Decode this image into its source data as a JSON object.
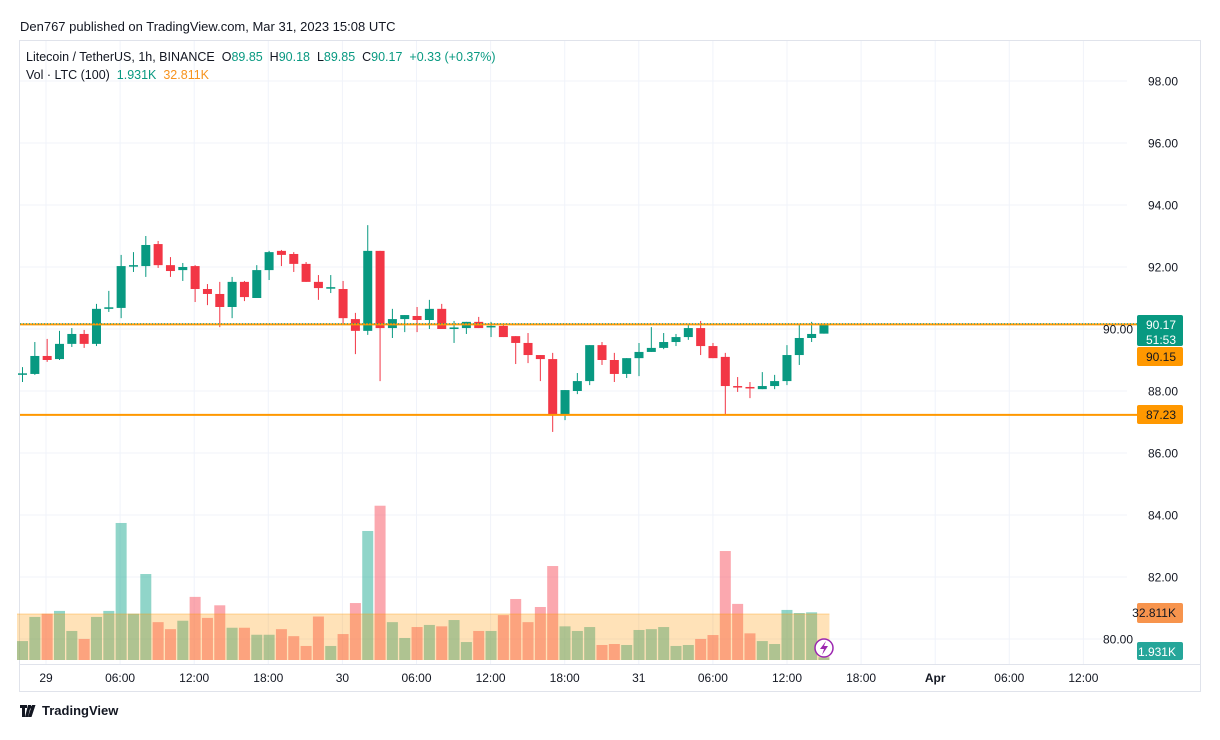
{
  "header": {
    "published": "Den767 published on TradingView.com, Mar 31, 2023 15:08 UTC",
    "symbol": "Litecoin / TetherUS, 1h, BINANCE",
    "o_label": "O",
    "o_value": "89.85",
    "h_label": "H",
    "h_value": "90.18",
    "l_label": "L",
    "l_value": "89.85",
    "c_label": "C",
    "c_value": "90.17",
    "change": "+0.33 (+0.37%)",
    "vol_label": "Vol · LTC (100)",
    "vol_value": "1.931K",
    "vol_ma_value": "32.811K"
  },
  "footer": {
    "brand": "TradingView",
    "logo_icon": "tradingview-logo-icon"
  },
  "colors": {
    "up": "#089981",
    "down": "#f23645",
    "level": "#ff9800",
    "vol_ma": "#ff9800",
    "event": "#9c27b0"
  },
  "badges": {
    "last_price": "90.17",
    "countdown": "51:53",
    "level_high": "90.15",
    "level_low": "87.23",
    "vol_ma": "32.811K",
    "vol_last": "1.931K"
  },
  "chart_data": {
    "type": "candlestick",
    "title": "Litecoin / TetherUS, 1h, BINANCE",
    "y_ticks": [
      "98.00",
      "96.00",
      "94.00",
      "92.00",
      "90.00",
      "88.00",
      "86.00",
      "84.00",
      "82.00",
      "80.00"
    ],
    "ylim": [
      79.3,
      98.9
    ],
    "x_ticks": [
      {
        "label": "29",
        "bold": false
      },
      {
        "label": "06:00",
        "bold": false
      },
      {
        "label": "12:00",
        "bold": false
      },
      {
        "label": "18:00",
        "bold": false
      },
      {
        "label": "30",
        "bold": false
      },
      {
        "label": "06:00",
        "bold": false
      },
      {
        "label": "12:00",
        "bold": false
      },
      {
        "label": "18:00",
        "bold": false
      },
      {
        "label": "31",
        "bold": false
      },
      {
        "label": "06:00",
        "bold": false
      },
      {
        "label": "12:00",
        "bold": false
      },
      {
        "label": "18:00",
        "bold": false
      },
      {
        "label": "Apr",
        "bold": true
      },
      {
        "label": "06:00",
        "bold": false
      },
      {
        "label": "12:00",
        "bold": false
      }
    ],
    "grid": true,
    "horizontal_levels": [
      90.15,
      87.23
    ],
    "last_price": 90.17,
    "ohlc": [
      [
        88.53,
        88.77,
        88.29,
        88.57
      ],
      [
        88.55,
        89.58,
        88.52,
        89.13
      ],
      [
        89.13,
        89.68,
        88.94,
        89.0
      ],
      [
        89.03,
        89.94,
        89.0,
        89.52
      ],
      [
        89.52,
        90.03,
        89.42,
        89.84
      ],
      [
        89.84,
        89.97,
        89.39,
        89.52
      ],
      [
        89.52,
        90.81,
        89.45,
        90.65
      ],
      [
        90.65,
        91.23,
        90.55,
        90.7
      ],
      [
        90.68,
        92.39,
        90.35,
        92.03
      ],
      [
        92.03,
        92.48,
        91.84,
        92.06
      ],
      [
        92.03,
        93.0,
        91.68,
        92.71
      ],
      [
        92.74,
        92.84,
        91.97,
        92.06
      ],
      [
        92.06,
        92.32,
        91.68,
        91.87
      ],
      [
        91.9,
        92.13,
        91.55,
        92.0
      ],
      [
        92.03,
        92.06,
        90.87,
        91.29
      ],
      [
        91.29,
        91.45,
        90.77,
        91.13
      ],
      [
        91.13,
        91.52,
        90.06,
        90.71
      ],
      [
        90.71,
        91.68,
        90.35,
        91.52
      ],
      [
        91.52,
        91.55,
        90.9,
        91.03
      ],
      [
        91.0,
        92.06,
        91.0,
        91.9
      ],
      [
        91.9,
        92.52,
        91.58,
        92.48
      ],
      [
        92.52,
        92.55,
        92.03,
        92.39
      ],
      [
        92.42,
        92.48,
        91.84,
        92.1
      ],
      [
        92.1,
        92.16,
        91.52,
        91.52
      ],
      [
        91.52,
        91.74,
        90.94,
        91.32
      ],
      [
        91.3,
        91.74,
        91.16,
        91.35
      ],
      [
        91.29,
        91.55,
        90.13,
        90.35
      ],
      [
        90.32,
        90.52,
        89.19,
        89.94
      ],
      [
        89.94,
        93.35,
        89.81,
        92.52
      ],
      [
        92.52,
        92.52,
        88.32,
        90.03
      ],
      [
        90.03,
        90.65,
        89.71,
        90.32
      ],
      [
        90.32,
        90.45,
        89.9,
        90.45
      ],
      [
        90.42,
        90.71,
        89.9,
        90.29
      ],
      [
        90.29,
        90.94,
        90.0,
        90.65
      ],
      [
        90.65,
        90.81,
        90.0,
        90.0
      ],
      [
        90.0,
        90.26,
        89.55,
        90.05
      ],
      [
        90.03,
        90.23,
        89.84,
        90.23
      ],
      [
        90.23,
        90.39,
        90.03,
        90.03
      ],
      [
        90.05,
        90.23,
        89.74,
        90.1
      ],
      [
        90.1,
        90.16,
        89.74,
        89.74
      ],
      [
        89.77,
        89.77,
        88.87,
        89.55
      ],
      [
        89.55,
        89.87,
        88.9,
        89.16
      ],
      [
        89.16,
        89.16,
        88.32,
        89.03
      ],
      [
        89.03,
        89.23,
        86.68,
        87.23
      ],
      [
        87.23,
        88.03,
        87.06,
        88.03
      ],
      [
        88.0,
        88.58,
        87.9,
        88.32
      ],
      [
        88.32,
        89.48,
        88.19,
        89.48
      ],
      [
        89.48,
        89.58,
        88.84,
        89.0
      ],
      [
        89.0,
        89.23,
        88.29,
        88.55
      ],
      [
        88.55,
        89.06,
        88.42,
        89.06
      ],
      [
        89.06,
        89.55,
        88.48,
        89.26
      ],
      [
        89.26,
        90.06,
        89.26,
        89.39
      ],
      [
        89.39,
        89.87,
        89.35,
        89.58
      ],
      [
        89.58,
        89.84,
        89.45,
        89.74
      ],
      [
        89.74,
        90.13,
        89.65,
        90.03
      ],
      [
        90.03,
        90.26,
        89.16,
        89.45
      ],
      [
        89.45,
        89.55,
        89.06,
        89.06
      ],
      [
        89.1,
        89.23,
        87.23,
        88.16
      ],
      [
        88.16,
        88.45,
        87.97,
        88.13
      ],
      [
        88.13,
        88.29,
        87.77,
        88.1
      ],
      [
        88.06,
        88.61,
        88.06,
        88.16
      ],
      [
        88.16,
        88.52,
        88.06,
        88.32
      ],
      [
        88.32,
        89.48,
        88.19,
        89.16
      ],
      [
        89.16,
        90.16,
        88.84,
        89.71
      ],
      [
        89.71,
        90.23,
        89.58,
        89.84
      ],
      [
        89.85,
        90.18,
        89.85,
        90.17
      ]
    ],
    "volume_k": [
      13.5,
      30.7,
      33,
      35,
      20.7,
      15,
      30.7,
      35,
      97.7,
      33,
      61.3,
      27,
      22,
      28,
      45,
      30,
      39,
      23,
      23,
      18,
      18,
      22,
      17,
      10,
      31,
      10,
      18.5,
      40.6,
      92,
      110,
      27,
      15.7,
      23.5,
      25,
      24,
      28.5,
      12.8,
      20.7,
      20.7,
      32,
      43.5,
      27,
      37.8,
      67,
      24,
      20.7,
      23.5,
      10.7,
      11.4,
      10.7,
      21.4,
      22,
      23.5,
      10,
      10.7,
      15,
      17.8,
      77.7,
      40,
      19,
      13.5,
      11.4,
      35.7,
      33.5,
      34,
      1.931
    ],
    "volume_ma_k": 32.811
  }
}
